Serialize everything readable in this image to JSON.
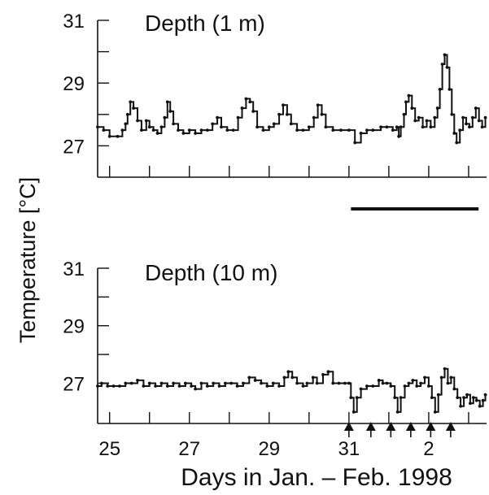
{
  "chart_data": [
    {
      "type": "line",
      "title": "Depth (1 m)",
      "ylabel": "Temperature [°C]",
      "xlabel": "Days in Jan. – Feb. 1998",
      "ylim": [
        26.0,
        31.0
      ],
      "y_ticks": [
        27,
        29,
        31
      ],
      "y_tick_labels": [
        "27",
        "29",
        "31"
      ],
      "y_minor_ticks": [
        28,
        30
      ],
      "xlim": [
        24.7,
        34.45
      ],
      "x_ticks": [
        25,
        26,
        27,
        28,
        29,
        30,
        31,
        32,
        33,
        34
      ],
      "x_tick_labels": [],
      "grid": false,
      "legend": "none",
      "series": [
        {
          "values": [
            [
              24.7,
              27.6
            ],
            [
              24.85,
              27.5
            ],
            [
              25.0,
              27.3
            ],
            [
              25.2,
              27.3
            ],
            [
              25.32,
              27.5
            ],
            [
              25.4,
              27.7
            ],
            [
              25.45,
              28.0
            ],
            [
              25.52,
              28.4
            ],
            [
              25.6,
              28.2
            ],
            [
              25.7,
              27.8
            ],
            [
              25.8,
              27.5
            ],
            [
              25.92,
              27.8
            ],
            [
              26.0,
              27.6
            ],
            [
              26.1,
              27.5
            ],
            [
              26.2,
              27.4
            ],
            [
              26.3,
              27.6
            ],
            [
              26.38,
              27.9
            ],
            [
              26.45,
              28.4
            ],
            [
              26.52,
              28.1
            ],
            [
              26.6,
              27.7
            ],
            [
              26.72,
              27.5
            ],
            [
              26.85,
              27.4
            ],
            [
              27.0,
              27.5
            ],
            [
              27.15,
              27.4
            ],
            [
              27.3,
              27.5
            ],
            [
              27.45,
              27.5
            ],
            [
              27.58,
              27.7
            ],
            [
              27.7,
              27.9
            ],
            [
              27.8,
              27.6
            ],
            [
              27.95,
              27.5
            ],
            [
              28.1,
              27.5
            ],
            [
              28.22,
              27.9
            ],
            [
              28.32,
              28.2
            ],
            [
              28.42,
              28.5
            ],
            [
              28.52,
              28.4
            ],
            [
              28.6,
              28.1
            ],
            [
              28.7,
              27.6
            ],
            [
              28.85,
              27.5
            ],
            [
              29.0,
              27.6
            ],
            [
              29.12,
              27.7
            ],
            [
              29.25,
              28.0
            ],
            [
              29.35,
              28.3
            ],
            [
              29.45,
              28.0
            ],
            [
              29.55,
              27.7
            ],
            [
              29.7,
              27.5
            ],
            [
              29.85,
              27.5
            ],
            [
              30.0,
              27.6
            ],
            [
              30.12,
              27.9
            ],
            [
              30.22,
              28.3
            ],
            [
              30.32,
              28.0
            ],
            [
              30.42,
              27.6
            ],
            [
              30.6,
              27.5
            ],
            [
              30.8,
              27.5
            ],
            [
              31.0,
              27.5
            ],
            [
              31.15,
              27.1
            ],
            [
              31.3,
              27.4
            ],
            [
              31.45,
              27.5
            ],
            [
              31.6,
              27.5
            ],
            [
              31.8,
              27.6
            ],
            [
              31.95,
              27.6
            ],
            [
              32.1,
              27.5
            ],
            [
              32.2,
              27.6
            ],
            [
              32.25,
              27.3
            ],
            [
              32.3,
              27.6
            ],
            [
              32.38,
              28.0
            ],
            [
              32.43,
              28.4
            ],
            [
              32.5,
              28.6
            ],
            [
              32.58,
              28.2
            ],
            [
              32.66,
              27.8
            ],
            [
              32.75,
              27.9
            ],
            [
              32.85,
              27.6
            ],
            [
              32.95,
              27.8
            ],
            [
              33.05,
              27.6
            ],
            [
              33.15,
              27.9
            ],
            [
              33.22,
              28.2
            ],
            [
              33.28,
              28.8
            ],
            [
              33.34,
              29.6
            ],
            [
              33.4,
              29.9
            ],
            [
              33.46,
              29.5
            ],
            [
              33.52,
              28.8
            ],
            [
              33.58,
              28.0
            ],
            [
              33.64,
              27.4
            ],
            [
              33.7,
              27.1
            ],
            [
              33.78,
              27.5
            ],
            [
              33.86,
              27.9
            ],
            [
              33.94,
              27.7
            ],
            [
              34.02,
              27.6
            ],
            [
              34.1,
              27.9
            ],
            [
              34.18,
              28.2
            ],
            [
              34.26,
              27.8
            ],
            [
              34.34,
              27.6
            ],
            [
              34.42,
              27.9
            ]
          ]
        }
      ],
      "bar_annotation": {
        "x_start": 31.05,
        "x_end": 34.25
      }
    },
    {
      "type": "line",
      "title": "Depth (10 m)",
      "ylabel": "Temperature [°C]",
      "xlabel": "Days in Jan. – Feb. 1998",
      "ylim": [
        25.6,
        31.0
      ],
      "y_ticks": [
        27,
        29,
        31
      ],
      "y_tick_labels": [
        "27",
        "29",
        "31"
      ],
      "y_minor_ticks": [
        28,
        30
      ],
      "xlim": [
        24.7,
        34.45
      ],
      "x_ticks": [
        25,
        26,
        27,
        28,
        29,
        30,
        31,
        32,
        33,
        34
      ],
      "x_tick_labels": [
        "25",
        "27",
        "29",
        "31",
        "2"
      ],
      "x_tick_label_positions": [
        25,
        27,
        29,
        31,
        33
      ],
      "grid": false,
      "legend": "none",
      "series": [
        {
          "values": [
            [
              24.7,
              26.9
            ],
            [
              24.8,
              27.0
            ],
            [
              24.95,
              26.9
            ],
            [
              25.1,
              26.9
            ],
            [
              25.25,
              26.9
            ],
            [
              25.4,
              27.0
            ],
            [
              25.55,
              27.0
            ],
            [
              25.7,
              27.1
            ],
            [
              25.85,
              26.9
            ],
            [
              26.0,
              27.0
            ],
            [
              26.15,
              26.9
            ],
            [
              26.3,
              27.0
            ],
            [
              26.45,
              26.9
            ],
            [
              26.6,
              27.0
            ],
            [
              26.75,
              26.9
            ],
            [
              26.9,
              27.0
            ],
            [
              27.05,
              26.9
            ],
            [
              27.15,
              26.8
            ],
            [
              27.3,
              27.0
            ],
            [
              27.45,
              26.9
            ],
            [
              27.6,
              27.0
            ],
            [
              27.75,
              26.9
            ],
            [
              27.9,
              27.0
            ],
            [
              28.05,
              27.0
            ],
            [
              28.2,
              26.9
            ],
            [
              28.35,
              27.0
            ],
            [
              28.5,
              27.2
            ],
            [
              28.65,
              27.1
            ],
            [
              28.8,
              27.0
            ],
            [
              28.95,
              26.9
            ],
            [
              29.1,
              27.0
            ],
            [
              29.25,
              26.9
            ],
            [
              29.38,
              27.2
            ],
            [
              29.48,
              27.4
            ],
            [
              29.58,
              27.2
            ],
            [
              29.7,
              27.0
            ],
            [
              29.85,
              26.9
            ],
            [
              29.95,
              27.0
            ],
            [
              30.1,
              27.2
            ],
            [
              30.2,
              27.0
            ],
            [
              30.35,
              27.3
            ],
            [
              30.48,
              27.4
            ],
            [
              30.6,
              27.0
            ],
            [
              30.75,
              27.0
            ],
            [
              30.9,
              27.0
            ],
            [
              31.0,
              27.0
            ],
            [
              31.05,
              26.5
            ],
            [
              31.12,
              26.0
            ],
            [
              31.2,
              26.5
            ],
            [
              31.3,
              26.8
            ],
            [
              31.45,
              26.9
            ],
            [
              31.6,
              26.9
            ],
            [
              31.75,
              27.1
            ],
            [
              31.85,
              27.0
            ],
            [
              31.95,
              27.0
            ],
            [
              32.05,
              26.9
            ],
            [
              32.15,
              26.5
            ],
            [
              32.22,
              26.0
            ],
            [
              32.3,
              26.5
            ],
            [
              32.4,
              26.9
            ],
            [
              32.5,
              27.0
            ],
            [
              32.6,
              27.1
            ],
            [
              32.7,
              26.9
            ],
            [
              32.8,
              27.0
            ],
            [
              32.9,
              27.2
            ],
            [
              33.0,
              26.9
            ],
            [
              33.08,
              26.5
            ],
            [
              33.16,
              26.0
            ],
            [
              33.24,
              26.6
            ],
            [
              33.32,
              27.2
            ],
            [
              33.4,
              27.5
            ],
            [
              33.48,
              27.0
            ],
            [
              33.56,
              27.2
            ],
            [
              33.64,
              26.8
            ],
            [
              33.72,
              26.5
            ],
            [
              33.8,
              26.2
            ],
            [
              33.88,
              26.5
            ],
            [
              33.96,
              26.6
            ],
            [
              34.04,
              26.3
            ],
            [
              34.12,
              26.5
            ],
            [
              34.2,
              26.4
            ],
            [
              34.28,
              26.2
            ],
            [
              34.36,
              26.4
            ],
            [
              34.42,
              26.6
            ]
          ]
        }
      ],
      "arrow_markers": [
        31.0,
        31.55,
        32.05,
        32.55,
        33.05,
        33.55
      ]
    }
  ],
  "figure": {
    "ylabel": "Temperature [°C]",
    "xlabel": "Days in Jan. – Feb. 1998"
  }
}
